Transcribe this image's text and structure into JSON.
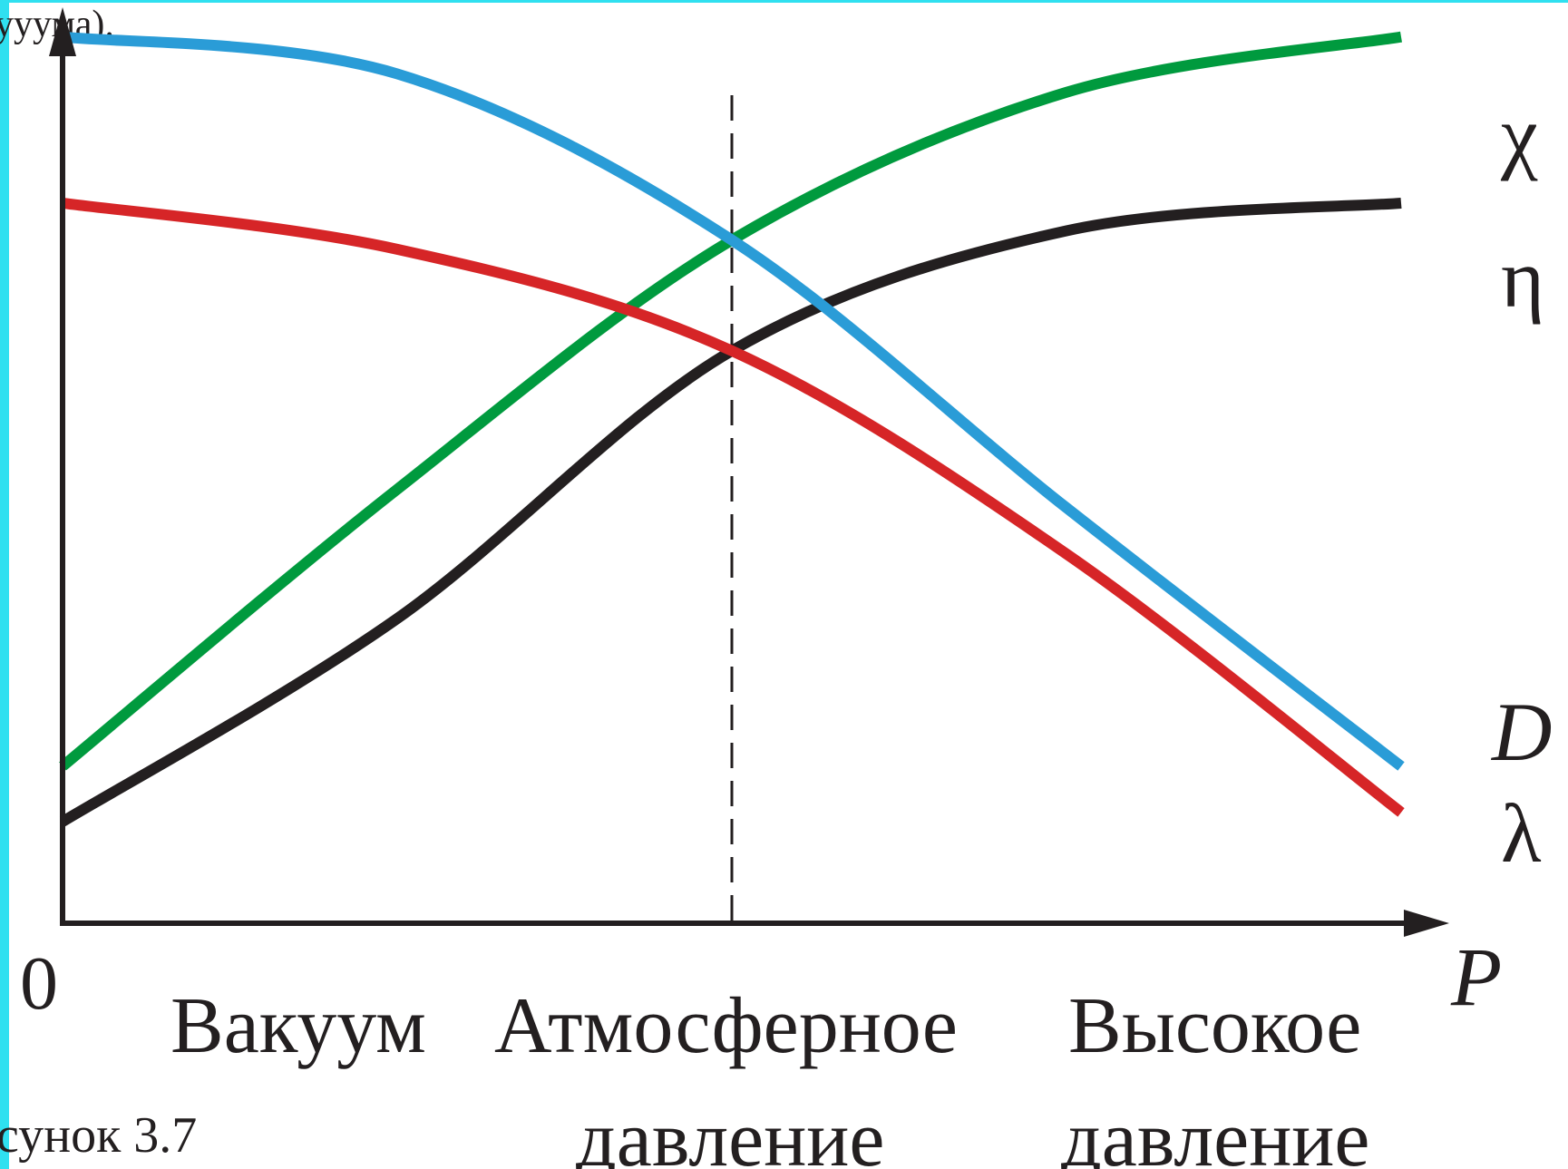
{
  "header_fragment": "ууума).",
  "caption": "сунок 3.7",
  "chart_data": {
    "type": "line",
    "xlabel": "P",
    "origin_label": "0",
    "x_categories": [
      {
        "line1": "Вакуум",
        "line2": ""
      },
      {
        "line1": "Атмосферное",
        "line2": "давление"
      },
      {
        "line1": "Высокое",
        "line2": "давление"
      }
    ],
    "xlim": [
      0,
      1
    ],
    "ylim": [
      0,
      1
    ],
    "reference_line": {
      "x": 0.5,
      "style": "dashed",
      "color": "#231f20"
    },
    "series": [
      {
        "name": "χ",
        "color": "#009a3e",
        "x": [
          0,
          0.25,
          0.5,
          0.75,
          1.0
        ],
        "y": [
          0.17,
          0.47,
          0.74,
          0.9,
          0.96
        ]
      },
      {
        "name": "η",
        "color": "#231f20",
        "x": [
          0,
          0.25,
          0.5,
          0.75,
          1.0
        ],
        "y": [
          0.11,
          0.33,
          0.62,
          0.75,
          0.78
        ]
      },
      {
        "name": "D",
        "color": "#2a9cd7",
        "x": [
          0,
          0.25,
          0.5,
          0.75,
          1.0
        ],
        "y": [
          0.96,
          0.92,
          0.74,
          0.45,
          0.17
        ]
      },
      {
        "name": "λ",
        "color": "#d62527",
        "x": [
          0,
          0.25,
          0.5,
          0.75,
          1.0
        ],
        "y": [
          0.78,
          0.73,
          0.62,
          0.4,
          0.12
        ]
      }
    ]
  }
}
